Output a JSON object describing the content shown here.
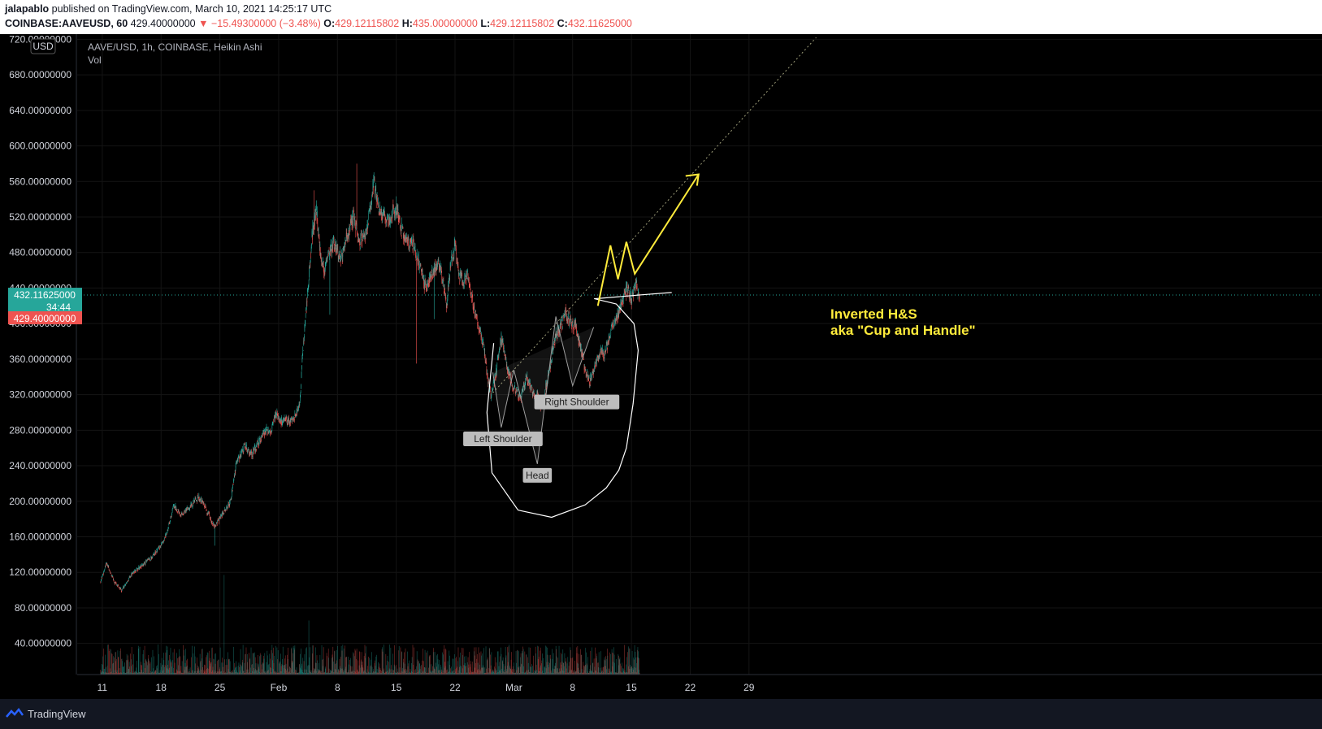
{
  "header": {
    "author": "jalapablo",
    "published": "published on TradingView.com, March 10, 2021 14:25:17 UTC",
    "symbol": "COINBASE:AAVEUSD, 60",
    "last_price": "429.40000000",
    "change": "▼ −15.49300000 (−3.48%)",
    "o_label": "O:",
    "o_value": "429.12115802",
    "h_label": "H:",
    "h_value": "435.00000000",
    "l_label": "L:",
    "l_value": "429.12115802",
    "c_label": "C:",
    "c_value": "432.11625000"
  },
  "legend": {
    "title": "AAVE/USD, 1h, COINBASE, Heikin Ashi",
    "vol": "Vol",
    "currency_badge": "USD"
  },
  "price_badges": {
    "current": "432.11625000",
    "countdown": "34:44",
    "last": "429.40000000"
  },
  "annotations": {
    "pattern_line1": "Inverted H&S",
    "pattern_line2": "aka \"Cup and Handle\"",
    "left_shoulder": "Left Shoulder",
    "head": "Head",
    "right_shoulder": "Right Shoulder"
  },
  "footer": {
    "brand": "TradingView"
  },
  "colors": {
    "up": "#26a69a",
    "down": "#ef5350",
    "annotation": "#ffeb3b",
    "background": "#000000",
    "axis_text": "#d1d4dc"
  },
  "chart_data": {
    "type": "candlestick",
    "title": "AAVE/USD, 1h, COINBASE, Heikin Ashi",
    "ylim": [
      32,
      722
    ],
    "yticks": [
      40,
      80,
      120,
      160,
      200,
      240,
      280,
      320,
      360,
      400,
      440,
      480,
      520,
      560,
      600,
      640,
      680,
      720
    ],
    "ytick_labels": [
      "40.00000000",
      "80.00000000",
      "120.00000000",
      "160.00000000",
      "200.00000000",
      "240.00000000",
      "280.00000000",
      "320.00000000",
      "360.00000000",
      "400.00000000",
      "440.00000000",
      "480.00000000",
      "520.00000000",
      "560.00000000",
      "600.00000000",
      "640.00000000",
      "680.00000000",
      "720.00000000"
    ],
    "xtick_labels": [
      "11",
      "18",
      "25",
      "Feb",
      "8",
      "15",
      "22",
      "Mar",
      "8",
      "15",
      "22",
      "29"
    ],
    "xtick_days": [
      10,
      17,
      24,
      31,
      38,
      45,
      52,
      59,
      66,
      73,
      80,
      87
    ],
    "x_unit": "days since 2021-01-01",
    "grid": true,
    "price_path": [
      [
        9.8,
        110
      ],
      [
        10.5,
        130
      ],
      [
        11.5,
        108
      ],
      [
        12.3,
        100
      ],
      [
        13.5,
        118
      ],
      [
        15,
        130
      ],
      [
        16,
        138
      ],
      [
        17,
        150
      ],
      [
        17.7,
        165
      ],
      [
        18.5,
        195
      ],
      [
        19.5,
        185
      ],
      [
        20.5,
        195
      ],
      [
        21.5,
        205
      ],
      [
        22.5,
        188
      ],
      [
        23.3,
        172
      ],
      [
        24,
        180
      ],
      [
        24.5,
        188
      ],
      [
        25.3,
        200
      ],
      [
        26,
        245
      ],
      [
        27,
        262
      ],
      [
        27.8,
        252
      ],
      [
        28.7,
        268
      ],
      [
        29.5,
        280
      ],
      [
        30,
        275
      ],
      [
        30.7,
        298
      ],
      [
        31.3,
        290
      ],
      [
        32.3,
        290
      ],
      [
        33.1,
        298
      ],
      [
        33.5,
        310
      ],
      [
        34,
        385
      ],
      [
        34.5,
        440
      ],
      [
        35,
        500
      ],
      [
        35.5,
        530
      ],
      [
        36,
        475
      ],
      [
        36.5,
        460
      ],
      [
        37.5,
        492
      ],
      [
        38.5,
        472
      ],
      [
        39.5,
        510
      ],
      [
        40,
        520
      ],
      [
        40.5,
        492
      ],
      [
        41.5,
        500
      ],
      [
        42.3,
        560
      ],
      [
        43,
        525
      ],
      [
        44,
        515
      ],
      [
        45,
        530
      ],
      [
        45.5,
        510
      ],
      [
        46,
        495
      ],
      [
        47,
        488
      ],
      [
        47.5,
        475
      ],
      [
        48,
        458
      ],
      [
        48.5,
        440
      ],
      [
        49,
        452
      ],
      [
        50,
        470
      ],
      [
        50.5,
        455
      ],
      [
        51,
        420
      ],
      [
        51.5,
        470
      ],
      [
        52,
        488
      ],
      [
        52.5,
        458
      ],
      [
        53,
        448
      ],
      [
        53.5,
        455
      ],
      [
        54,
        430
      ],
      [
        54.7,
        400
      ],
      [
        55.4,
        375
      ],
      [
        55.8,
        345
      ],
      [
        56.3,
        318
      ],
      [
        56.9,
        345
      ],
      [
        57.5,
        385
      ],
      [
        58,
        360
      ],
      [
        58.5,
        342
      ],
      [
        59,
        328
      ],
      [
        59.8,
        315
      ],
      [
        60.5,
        340
      ],
      [
        61.2,
        325
      ],
      [
        61.8,
        318
      ],
      [
        62.3,
        306
      ],
      [
        63,
        335
      ],
      [
        63.5,
        362
      ],
      [
        64,
        385
      ],
      [
        64.5,
        395
      ],
      [
        65.2,
        412
      ],
      [
        65.8,
        402
      ],
      [
        66.4,
        395
      ],
      [
        67,
        372
      ],
      [
        67.5,
        348
      ],
      [
        68,
        335
      ],
      [
        68.6,
        352
      ],
      [
        69.2,
        368
      ],
      [
        69.8,
        365
      ],
      [
        70.4,
        385
      ],
      [
        71,
        405
      ],
      [
        71.5,
        412
      ],
      [
        72,
        425
      ],
      [
        72.5,
        440
      ],
      [
        73,
        428
      ],
      [
        73.5,
        445
      ],
      [
        74,
        432
      ]
    ],
    "series": [
      {
        "name": "Vol",
        "type": "volume",
        "notable_spikes": [
          [
            24.5,
            350
          ],
          [
            34.6,
            190
          ],
          [
            45.3,
            85
          ]
        ]
      }
    ],
    "drawings": {
      "head_and_shoulders": [
        [
          56.5,
          345
        ],
        [
          57.5,
          283
        ],
        [
          59,
          348
        ],
        [
          61.8,
          242
        ],
        [
          64,
          408
        ],
        [
          66,
          330
        ],
        [
          68.5,
          396
        ]
      ],
      "trendline": {
        "from": [
          56.5,
          322
        ],
        "to": [
          95,
          722
        ]
      },
      "projection_arrow": [
        [
          69,
          420
        ],
        [
          70.5,
          488
        ],
        [
          71.4,
          450
        ],
        [
          72.4,
          492
        ],
        [
          73.4,
          456
        ],
        [
          81,
          568
        ]
      ]
    }
  }
}
